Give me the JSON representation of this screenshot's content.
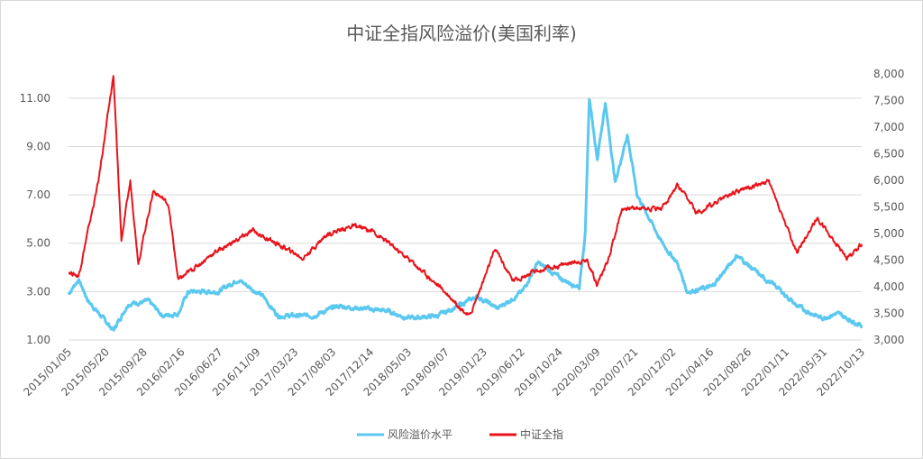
{
  "chart_data": {
    "type": "line",
    "title": "中证全指风险溢价(美国利率)",
    "x_tick_labels": [
      "2015/01/05",
      "2015/05/20",
      "2015/09/28",
      "2016/02/16",
      "2016/06/27",
      "2016/11/09",
      "2017/03/23",
      "2017/08/03",
      "2017/12/14",
      "2018/05/03",
      "2018/09/07",
      "2019/01/23",
      "2019/06/12",
      "2019/10/24",
      "2020/03/09",
      "2020/07/21",
      "2020/12/02",
      "2021/04/16",
      "2021/08/26",
      "2022/01/11",
      "2022/05/31",
      "2022/10/13"
    ],
    "x_range": [
      2015.0,
      2022.95
    ],
    "y_left": {
      "ticks": [
        "1.00",
        "3.00",
        "5.00",
        "7.00",
        "9.00",
        "11.00"
      ],
      "range": [
        1,
        12
      ]
    },
    "y_right": {
      "ticks": [
        "3,000",
        "3,500",
        "4,000",
        "4,500",
        "5,000",
        "5,500",
        "6,000",
        "6,500",
        "7,000",
        "7,500",
        "8,000"
      ],
      "range": [
        3000,
        8000
      ]
    },
    "grid": true,
    "legend_position": "bottom",
    "series": [
      {
        "name": "风险溢价水平",
        "axis": "left",
        "color": "#5bc8f0",
        "points": [
          [
            2015.0,
            2.9
          ],
          [
            2015.1,
            3.5
          ],
          [
            2015.2,
            2.6
          ],
          [
            2015.45,
            1.4
          ],
          [
            2015.6,
            2.5
          ],
          [
            2015.8,
            2.6
          ],
          [
            2015.95,
            2.0
          ],
          [
            2016.1,
            2.1
          ],
          [
            2016.2,
            3.0
          ],
          [
            2016.5,
            3.0
          ],
          [
            2016.7,
            3.5
          ],
          [
            2016.95,
            2.8
          ],
          [
            2017.1,
            2.0
          ],
          [
            2017.45,
            2.0
          ],
          [
            2017.7,
            2.4
          ],
          [
            2017.95,
            2.3
          ],
          [
            2018.2,
            2.2
          ],
          [
            2018.4,
            1.9
          ],
          [
            2018.7,
            2.0
          ],
          [
            2018.95,
            2.5
          ],
          [
            2019.1,
            2.8
          ],
          [
            2019.3,
            2.3
          ],
          [
            2019.55,
            3.0
          ],
          [
            2019.7,
            4.2
          ],
          [
            2019.95,
            3.5
          ],
          [
            2020.12,
            3.2
          ],
          [
            2020.18,
            5.5
          ],
          [
            2020.22,
            11.0
          ],
          [
            2020.3,
            8.5
          ],
          [
            2020.38,
            10.8
          ],
          [
            2020.48,
            7.5
          ],
          [
            2020.6,
            9.5
          ],
          [
            2020.7,
            7.0
          ],
          [
            2020.95,
            5.0
          ],
          [
            2021.1,
            4.2
          ],
          [
            2021.2,
            3.0
          ],
          [
            2021.45,
            3.2
          ],
          [
            2021.7,
            4.5
          ],
          [
            2021.95,
            3.6
          ],
          [
            2022.1,
            3.2
          ],
          [
            2022.3,
            2.4
          ],
          [
            2022.55,
            1.9
          ],
          [
            2022.7,
            2.1
          ],
          [
            2022.95,
            1.6
          ]
        ]
      },
      {
        "name": "中证全指",
        "axis": "right",
        "color": "#e8141b",
        "points": [
          [
            2015.0,
            4290
          ],
          [
            2015.1,
            4200
          ],
          [
            2015.3,
            5980
          ],
          [
            2015.45,
            7970
          ],
          [
            2015.53,
            4880
          ],
          [
            2015.62,
            5980
          ],
          [
            2015.7,
            4460
          ],
          [
            2015.85,
            5810
          ],
          [
            2016.0,
            5560
          ],
          [
            2016.1,
            4120
          ],
          [
            2016.45,
            4630
          ],
          [
            2016.85,
            5050
          ],
          [
            2017.35,
            4540
          ],
          [
            2017.6,
            5000
          ],
          [
            2017.85,
            5140
          ],
          [
            2018.05,
            5050
          ],
          [
            2018.45,
            4460
          ],
          [
            2018.8,
            3860
          ],
          [
            2019.02,
            3440
          ],
          [
            2019.28,
            4710
          ],
          [
            2019.45,
            4120
          ],
          [
            2019.7,
            4290
          ],
          [
            2020.05,
            4460
          ],
          [
            2020.2,
            4500
          ],
          [
            2020.3,
            4050
          ],
          [
            2020.4,
            4460
          ],
          [
            2020.55,
            5480
          ],
          [
            2020.95,
            5480
          ],
          [
            2021.1,
            5900
          ],
          [
            2021.3,
            5390
          ],
          [
            2021.7,
            5810
          ],
          [
            2022.02,
            5980
          ],
          [
            2022.3,
            4630
          ],
          [
            2022.5,
            5300
          ],
          [
            2022.8,
            4540
          ],
          [
            2022.95,
            4800
          ]
        ]
      }
    ]
  }
}
